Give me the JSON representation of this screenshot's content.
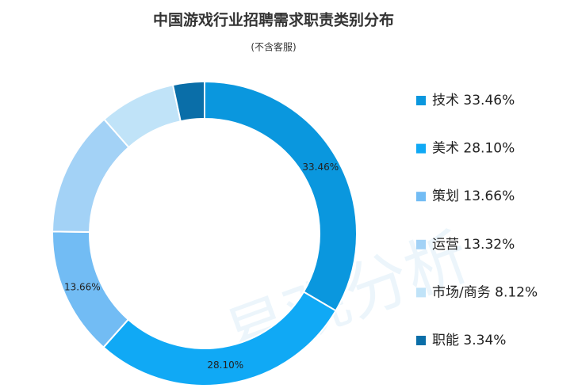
{
  "chart_data": {
    "type": "donut",
    "title": "中国游戏行业招聘需求职责类别分布",
    "subtitle": "(不含客服)",
    "watermark": "易观分析",
    "categories": [
      "技术",
      "美术",
      "策划",
      "运营",
      "市场/商务",
      "职能"
    ],
    "values": [
      33.46,
      28.1,
      13.66,
      13.32,
      8.12,
      3.34
    ],
    "value_labels": [
      "33.46%",
      "28.10%",
      "13.66%",
      "13.32%",
      "8.12%",
      "3.34%"
    ],
    "label_slices": [
      true,
      true,
      true,
      false,
      false,
      false
    ],
    "colors": [
      "#0a97de",
      "#10a9f5",
      "#72bcf4",
      "#a3d2f6",
      "#c0e3f8",
      "#0a6ea8"
    ],
    "legend": "right"
  }
}
